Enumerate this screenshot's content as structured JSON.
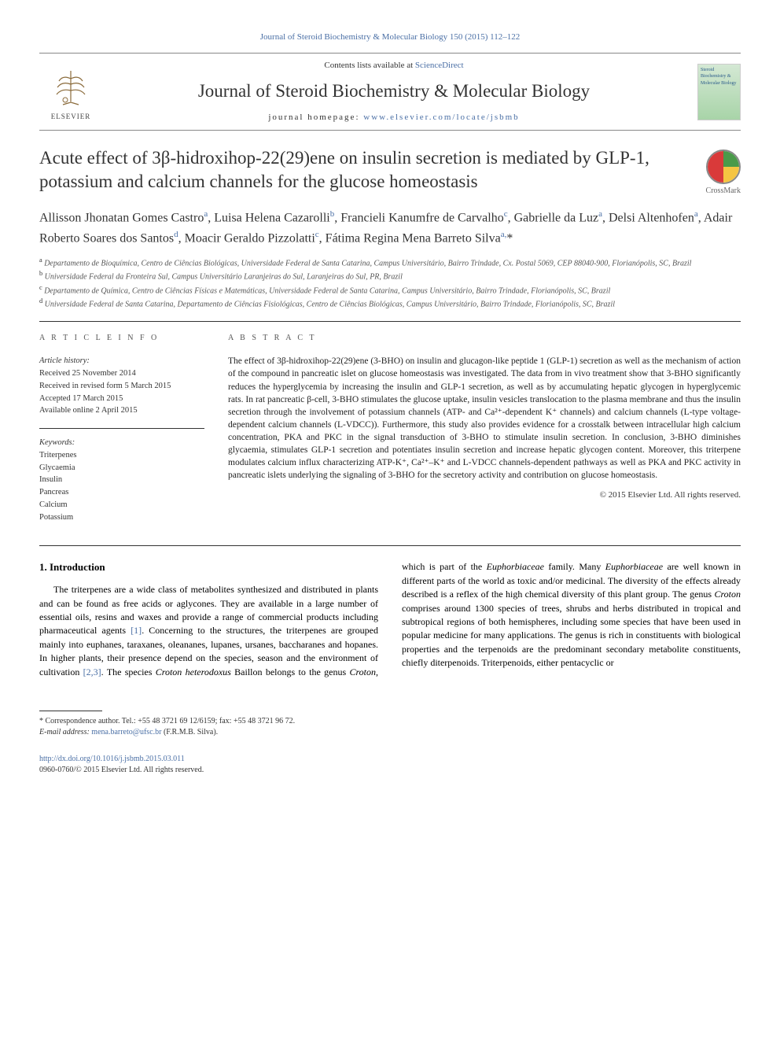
{
  "header": {
    "citation": "Journal of Steroid Biochemistry & Molecular Biology 150 (2015) 112–122",
    "contents_prefix": "Contents lists available at ",
    "contents_link": "ScienceDirect",
    "journal_name": "Journal of Steroid Biochemistry & Molecular Biology",
    "homepage_prefix": "journal homepage: ",
    "homepage_url": "www.elsevier.com/locate/jsbmb",
    "publisher_label": "ELSEVIER",
    "cover_text": "Steroid Biochemistry & Molecular Biology"
  },
  "crossmark": {
    "label": "CrossMark"
  },
  "title": "Acute effect of 3β-hidroxihop-22(29)ene on insulin secretion is mediated by GLP-1, potassium and calcium channels for the glucose homeostasis",
  "authors_html": "Allisson Jhonatan Gomes Castro<sup>a</sup>, Luisa Helena Cazarolli<sup>b</sup>, Francieli Kanumfre de Carvalho<sup>c</sup>, Gabrielle da Luz<sup>a</sup>, Delsi Altenhofen<sup>a</sup>, Adair Roberto Soares dos Santos<sup>d</sup>, Moacir Geraldo Pizzolatti<sup>c</sup>, Fátima Regina Mena Barreto Silva<sup>a,</sup>*",
  "affiliations": [
    {
      "sup": "a",
      "text": "Departamento de Bioquímica, Centro de Ciências Biológicas, Universidade Federal de Santa Catarina, Campus Universitário, Bairro Trindade, Cx. Postal 5069, CEP 88040-900, Florianópolis, SC, Brazil"
    },
    {
      "sup": "b",
      "text": "Universidade Federal da Fronteira Sul, Campus Universitário Laranjeiras do Sul, Laranjeiras do Sul, PR, Brazil"
    },
    {
      "sup": "c",
      "text": "Departamento de Química, Centro de Ciências Físicas e Matemáticas, Universidade Federal de Santa Catarina, Campus Universitário, Bairro Trindade, Florianópolis, SC, Brazil"
    },
    {
      "sup": "d",
      "text": "Universidade Federal de Santa Catarina, Departamento de Ciências Fisiológicas, Centro de Ciências Biológicas, Campus Universitário, Bairro Trindade, Florianópolis, SC, Brazil"
    }
  ],
  "article_info": {
    "label": "A R T I C L E  I N F O",
    "history_label": "Article history:",
    "history": [
      "Received 25 November 2014",
      "Received in revised form 5 March 2015",
      "Accepted 17 March 2015",
      "Available online 2 April 2015"
    ],
    "keywords_label": "Keywords:",
    "keywords": [
      "Triterpenes",
      "Glycaemia",
      "Insulin",
      "Pancreas",
      "Calcium",
      "Potassium"
    ]
  },
  "abstract": {
    "label": "A B S T R A C T",
    "text": "The effect of 3β-hidroxihop-22(29)ene (3-BHO) on insulin and glucagon-like peptide 1 (GLP-1) secretion as well as the mechanism of action of the compound in pancreatic islet on glucose homeostasis was investigated. The data from in vivo treatment show that 3-BHO significantly reduces the hyperglycemia by increasing the insulin and GLP-1 secretion, as well as by accumulating hepatic glycogen in hyperglycemic rats. In rat pancreatic β-cell, 3-BHO stimulates the glucose uptake, insulin vesicles translocation to the plasma membrane and thus the insulin secretion through the involvement of potassium channels (ATP- and Ca²⁺-dependent K⁺ channels) and calcium channels (L-type voltage-dependent calcium channels (L-VDCC)). Furthermore, this study also provides evidence for a crosstalk between intracellular high calcium concentration, PKA and PKC in the signal transduction of 3-BHO to stimulate insulin secretion. In conclusion, 3-BHO diminishes glycaemia, stimulates GLP-1 secretion and potentiates insulin secretion and increase hepatic glycogen content. Moreover, this triterpene modulates calcium influx characterizing ATP-K⁺, Ca²⁺–K⁺ and L-VDCC channels-dependent pathways as well as PKA and PKC activity in pancreatic islets underlying the signaling of 3-BHO for the secretory activity and contribution on glucose homeostasis.",
    "copyright": "© 2015 Elsevier Ltd. All rights reserved."
  },
  "intro": {
    "heading": "1. Introduction",
    "col1_prefix": "The triterpenes are a wide class of metabolites synthesized and distributed in plants and can be found as free acids or aglycones. They are available in a large number of essential oils, resins and waxes and provide a range of commercial products including pharmaceutical agents ",
    "cite1": "[1]",
    "col1_mid": ". Concerning to the structures, the triterpenes are grouped mainly into euphanes, taraxanes, oleananes, lupanes, ursanes, baccharanes and hopanes. In higher plants, their presence depend on the species, season and the environment of cultivation ",
    "cite2": "[2,3]",
    "col1_suffix": ". The species ",
    "species1": "Croton heterodoxus",
    "col2_prefix": "Baillon belongs to the genus ",
    "species2": "Croton",
    "col2_a": ", which is part of the ",
    "species3": "Euphorbiaceae",
    "col2_b": " family. Many ",
    "species4": "Euphorbiaceae",
    "col2_c": " are well known in different parts of the world as toxic and/or medicinal. The diversity of the effects already described is a reflex of the high chemical diversity of this plant group. The genus ",
    "species5": "Croton",
    "col2_d": " comprises around 1300 species of trees, shrubs and herbs distributed in tropical and subtropical regions of both hemispheres, including some species that have been used in popular medicine for many applications. The genus is rich in constituents with biological properties and the terpenoids are the predominant secondary metabolite constituents, chiefly diterpenoids. Triterpenoids, either pentacyclic or"
  },
  "footnote": {
    "corr": "* Correspondence author. Tel.: +55 48 3721 69 12/6159; fax: +55 48 3721 96 72.",
    "email_label": "E-mail address: ",
    "email": "mena.barreto@ufsc.br",
    "email_suffix": " (F.R.M.B. Silva)."
  },
  "footer": {
    "doi": "http://dx.doi.org/10.1016/j.jsbmb.2015.03.011",
    "issn_line": "0960-0760/© 2015 Elsevier Ltd. All rights reserved."
  },
  "colors": {
    "link": "#4a6fa5",
    "text": "#222222",
    "rule": "#333333"
  }
}
